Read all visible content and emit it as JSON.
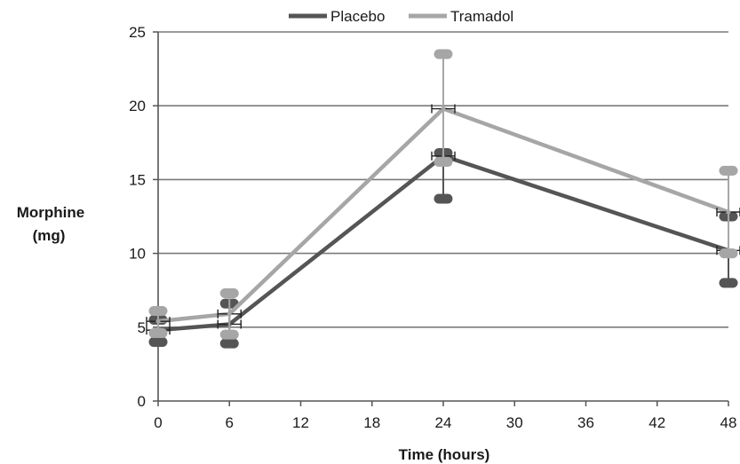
{
  "chart_data": {
    "type": "line",
    "title": "",
    "xlabel": "Time (hours)",
    "ylabel_line1": "Morphine",
    "ylabel_line2": "(mg)",
    "x_ticks": [
      "0",
      "6",
      "12",
      "18",
      "24",
      "30",
      "36",
      "42",
      "48"
    ],
    "y_ticks": [
      "0",
      "5",
      "10",
      "15",
      "20",
      "25"
    ],
    "xlim": [
      0,
      48
    ],
    "ylim": [
      0,
      25
    ],
    "grid": "horizontal",
    "legend_position": "top-center",
    "x": [
      0,
      6,
      24,
      48
    ],
    "series": [
      {
        "name": "Placebo",
        "color": "#555555",
        "values": [
          4.8,
          5.2,
          16.6,
          10.2
        ],
        "error_low": [
          4.0,
          3.9,
          13.7,
          8.0
        ],
        "error_high": [
          5.5,
          6.6,
          16.8,
          12.5
        ]
      },
      {
        "name": "Tramadol",
        "color": "#a6a6a6",
        "values": [
          5.4,
          5.9,
          19.8,
          12.8
        ],
        "error_low": [
          4.6,
          4.5,
          16.2,
          10.0
        ],
        "error_high": [
          6.1,
          7.3,
          23.5,
          15.6
        ]
      }
    ]
  }
}
